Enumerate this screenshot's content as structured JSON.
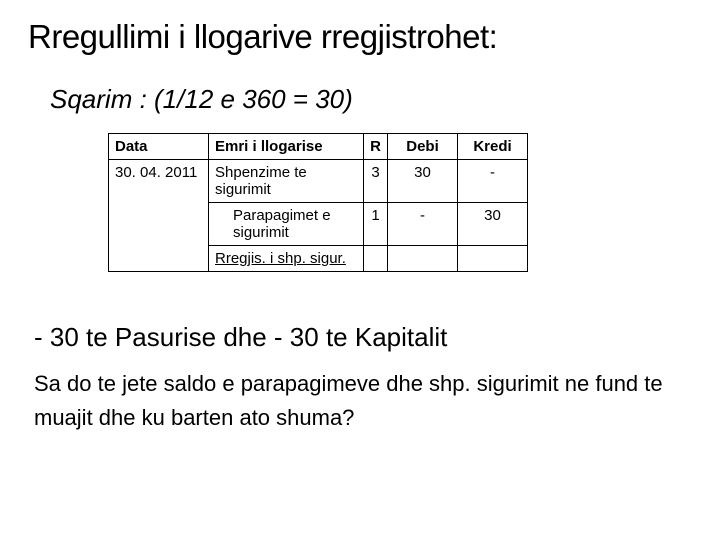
{
  "title": "Rregullimi i llogarive rregjistrohet:",
  "subtitle": "Sqarim : (1/12 e 360 = 30)",
  "table": {
    "headers": {
      "data": "Data",
      "emri": "Emri i llogarise",
      "r": "R",
      "debi": "Debi",
      "kredi": "Kredi"
    },
    "row_date": "30. 04. 2011",
    "row1_name": "Shpenzime te sigurimit",
    "row1_r": "3",
    "row1_debi": "30",
    "row1_kredi": "-",
    "row2_name": "Parapagimet e sigurimit",
    "row2_r": "1",
    "row2_debi": "-",
    "row2_kredi": "30",
    "footer": "Rregjis. i shp. sigur."
  },
  "bullet": "-  30 te Pasurise dhe - 30 te Kapitalit",
  "question": "Sa do te jete saldo e parapagimeve dhe shp. sigurimit ne fund te muajit dhe ku barten ato shuma?"
}
